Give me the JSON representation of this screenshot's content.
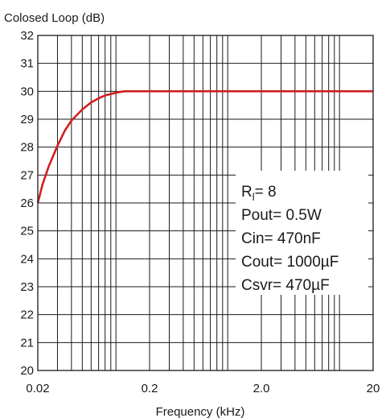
{
  "chart_data": {
    "type": "line",
    "title": "",
    "ylabel": "Colosed Loop (dB)",
    "xlabel": "Frequency (kHz)",
    "x_scale": "log",
    "xlim": [
      0.02,
      20
    ],
    "ylim": [
      20,
      32
    ],
    "grid": true,
    "x_tick_labels": [
      "0.02",
      "0.2",
      "2.0",
      "20"
    ],
    "x_tick_values": [
      0.02,
      0.2,
      2.0,
      20
    ],
    "y_ticks": [
      20,
      21,
      22,
      23,
      24,
      25,
      26,
      27,
      28,
      29,
      30,
      31,
      32
    ],
    "series": [
      {
        "color": "#d0201e",
        "x": [
          0.02,
          0.022,
          0.025,
          0.03,
          0.035,
          0.04,
          0.05,
          0.06,
          0.07,
          0.08,
          0.1,
          0.12,
          0.14,
          0.16,
          0.2,
          0.5,
          1,
          2,
          5,
          10,
          20
        ],
        "y": [
          26.0,
          26.65,
          27.3,
          28.05,
          28.6,
          28.95,
          29.35,
          29.6,
          29.75,
          29.85,
          29.95,
          30.0,
          30.0,
          30.0,
          30.0,
          30.0,
          30.0,
          30.0,
          30.0,
          30.0,
          30.0
        ]
      }
    ],
    "legend": "right",
    "annotation_lines": [
      {
        "main": "R",
        "sub": "l",
        "rest": "= 8"
      },
      {
        "main": "Pout= 0.5W",
        "sub": "",
        "rest": ""
      },
      {
        "main": "Cin= 470nF",
        "sub": "",
        "rest": ""
      },
      {
        "main": "Cout= 1000µF",
        "sub": "",
        "rest": ""
      },
      {
        "main": "Csvr= 470µF",
        "sub": "",
        "rest": ""
      }
    ]
  }
}
